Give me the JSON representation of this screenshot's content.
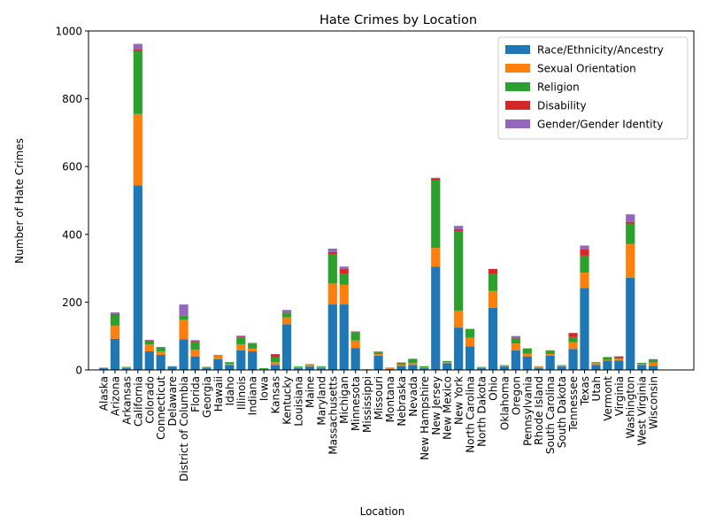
{
  "chart_data": {
    "type": "bar",
    "stacked": true,
    "title": "Hate Crimes by Location",
    "xlabel": "Location",
    "ylabel": "Number of Hate Crimes",
    "ylim": [
      0,
      1000
    ],
    "yticks": [
      0,
      200,
      400,
      600,
      800,
      1000
    ],
    "grid": false,
    "legend_position": "top-right",
    "categories": [
      "Alaska",
      "Arizona",
      "Arkansas",
      "California",
      "Colorado",
      "Connecticut",
      "Delaware",
      "District of Columbia",
      "Florida",
      "Georgia",
      "Hawaii",
      "Idaho",
      "Illinois",
      "Indiana",
      "Iowa",
      "Kansas",
      "Kentucky",
      "Louisiana",
      "Maine",
      "Maryland",
      "Massachusetts",
      "Michigan",
      "Minnesota",
      "Mississippi",
      "Missouri",
      "Montana",
      "Nebraska",
      "Nevada",
      "New Hampshire",
      "New Jersey",
      "New Mexico",
      "New York",
      "North Carolina",
      "North Dakota",
      "Ohio",
      "Oklahoma",
      "Oregon",
      "Pennsylvania",
      "Rhode Island",
      "South Carolina",
      "South Dakota",
      "Tennessee",
      "Texas",
      "Utah",
      "Vermont",
      "Virginia",
      "Washington",
      "West Virginia",
      "Wisconsin"
    ],
    "series": [
      {
        "name": "Race/Ethnicity/Ancestry",
        "color": "#1f77b4",
        "values": [
          5,
          92,
          5,
          545,
          55,
          45,
          10,
          90,
          40,
          5,
          32,
          15,
          58,
          55,
          2,
          15,
          135,
          5,
          10,
          5,
          193,
          193,
          65,
          1,
          42,
          3,
          12,
          15,
          5,
          305,
          20,
          125,
          70,
          5,
          183,
          10,
          58,
          40,
          5,
          42,
          10,
          62,
          242,
          15,
          28,
          28,
          272,
          15,
          12
        ]
      },
      {
        "name": "Sexual Orientation",
        "color": "#ff7f0e",
        "values": [
          1,
          38,
          2,
          210,
          20,
          10,
          0,
          58,
          20,
          1,
          10,
          3,
          18,
          8,
          0,
          8,
          20,
          3,
          5,
          2,
          62,
          58,
          22,
          0,
          5,
          3,
          3,
          5,
          3,
          55,
          3,
          50,
          25,
          3,
          50,
          2,
          20,
          8,
          5,
          5,
          2,
          20,
          45,
          5,
          2,
          5,
          100,
          3,
          10
        ]
      },
      {
        "name": "Religion",
        "color": "#2ca02c",
        "values": [
          1,
          32,
          2,
          185,
          10,
          12,
          1,
          12,
          22,
          3,
          2,
          5,
          20,
          15,
          3,
          15,
          12,
          2,
          2,
          3,
          85,
          32,
          25,
          1,
          5,
          1,
          5,
          12,
          3,
          200,
          3,
          235,
          25,
          1,
          50,
          2,
          15,
          15,
          1,
          10,
          2,
          15,
          50,
          3,
          8,
          2,
          60,
          3,
          8
        ]
      },
      {
        "name": "Disability",
        "color": "#d62728",
        "values": [
          0,
          3,
          0,
          5,
          2,
          0,
          0,
          0,
          3,
          0,
          0,
          0,
          2,
          1,
          0,
          8,
          2,
          0,
          0,
          0,
          8,
          15,
          1,
          0,
          2,
          0,
          2,
          1,
          0,
          5,
          0,
          5,
          1,
          0,
          15,
          0,
          2,
          0,
          0,
          1,
          0,
          12,
          18,
          0,
          0,
          5,
          5,
          0,
          0
        ]
      },
      {
        "name": "Gender/Gender Identity",
        "color": "#9467bd",
        "values": [
          0,
          5,
          0,
          17,
          2,
          1,
          0,
          33,
          3,
          0,
          0,
          0,
          3,
          1,
          0,
          1,
          8,
          0,
          0,
          1,
          10,
          7,
          1,
          0,
          0,
          0,
          0,
          0,
          0,
          2,
          0,
          10,
          0,
          0,
          0,
          0,
          5,
          1,
          0,
          0,
          0,
          0,
          12,
          0,
          0,
          0,
          22,
          0,
          2
        ]
      }
    ]
  }
}
